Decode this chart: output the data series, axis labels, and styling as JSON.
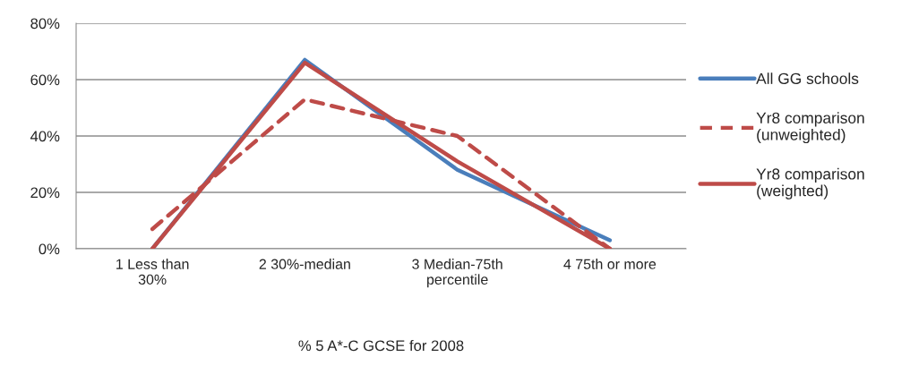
{
  "chart_data": {
    "type": "line",
    "xlabel": "% 5 A*-C GCSE for 2008",
    "categories": [
      "1 Less than\n30%",
      "2 30%-median",
      "3 Median-75th\npercentile",
      "4 75th or more"
    ],
    "series": [
      {
        "name": "All GG schools",
        "color": "#4a7ebb",
        "line_style": "solid",
        "values": [
          0,
          67,
          28,
          3
        ]
      },
      {
        "name": "Yr8 comparison\n(unweighted)",
        "color": "#be4b48",
        "line_style": "dashed",
        "values": [
          7,
          53,
          40,
          0
        ]
      },
      {
        "name": "Yr8 comparison\n(weighted)",
        "color": "#be4b48",
        "line_style": "solid",
        "values": [
          0,
          66,
          31,
          0
        ]
      }
    ],
    "ylim": [
      0,
      80
    ],
    "yticks": [
      {
        "value": 0,
        "label": "0%"
      },
      {
        "value": 20,
        "label": "20%"
      },
      {
        "value": 40,
        "label": "40%"
      },
      {
        "value": 60,
        "label": "60%"
      },
      {
        "value": 80,
        "label": "80%"
      }
    ],
    "grid": "y",
    "legend": "right",
    "marker": "none"
  }
}
